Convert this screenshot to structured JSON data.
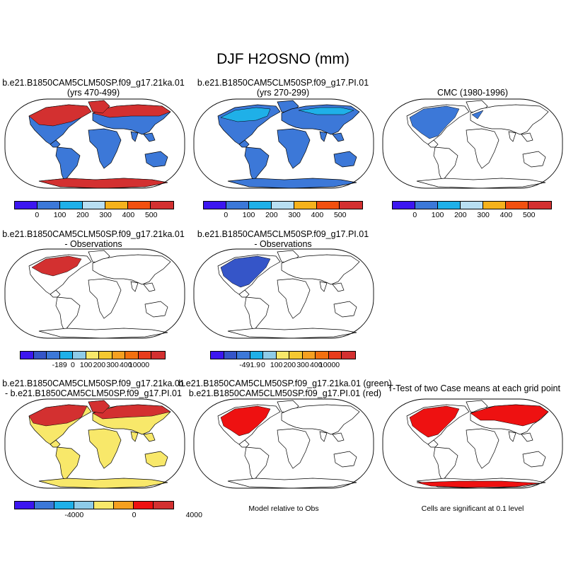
{
  "title": "DJF H2OSNO (mm)",
  "panels": {
    "p1": {
      "line1": "b.e21.B1850CAM5CLM50SP.f09_g17.21ka.01",
      "line2": "(yrs 470-499)",
      "fill": "#3c78d8",
      "snow": "#d33030"
    },
    "p2": {
      "line1": "b.e21.B1850CAM5CLM50SP.f09_g17.PI.01",
      "line2": "(yrs 270-299)",
      "fill": "#3c78d8",
      "snow": "#1fb0e8"
    },
    "p3": {
      "line1": "CMC (1980-1996)",
      "fill": "#ffffff",
      "snow": "#3c78d8"
    },
    "p4": {
      "line1": "b.e21.B1850CAM5CLM50SP.f09_g17.21ka.01",
      "line2": "- Observations",
      "fill": "#ffffff",
      "snow": "#d33030"
    },
    "p5": {
      "line1": "b.e21.B1850CAM5CLM50SP.f09_g17.PI.01",
      "line2": "- Observations",
      "fill": "#ffffff",
      "snow": "#3555c8"
    },
    "p7": {
      "line1": "b.e21.B1850CAM5CLM50SP.f09_g17.21ka.01",
      "line2": "- b.e21.B1850CAM5CLM50SP.f09_g17.PI.01",
      "fill": "#f8e86a",
      "snow": "#d33030"
    },
    "p8": {
      "line1": "b.e21.B1850CAM5CLM50SP.f09_g17.21ka.01 (green)",
      "line2": "b.e21.B1850CAM5CLM50SP.f09_g17.PI.01 (red)",
      "fill": "#ffffff",
      "snow": "#ee1111"
    },
    "p9": {
      "line1": "T-Test of two Case means at each grid point",
      "fill": "#ffffff",
      "snow": "#ee1111"
    }
  },
  "colorbars": {
    "abs": {
      "colors": [
        "#3c16f0",
        "#3c78d8",
        "#1fb0e8",
        "#b8dff2",
        "#f5b21c",
        "#f2500f",
        "#d33030"
      ],
      "ticks": [
        "0",
        "100",
        "200",
        "300",
        "400",
        "500"
      ]
    },
    "diff1": {
      "colors": [
        "#3c16f0",
        "#3555c8",
        "#3c78d8",
        "#1fb0e8",
        "#8ecbe8",
        "#f8e86a",
        "#f5c830",
        "#f5a020",
        "#f2700f",
        "#e83c1c",
        "#d33030"
      ],
      "ticks": [
        "-189",
        "0",
        "100",
        "200",
        "300",
        "400",
        "10000"
      ]
    },
    "diff2": {
      "colors": [
        "#3c16f0",
        "#3555c8",
        "#3c78d8",
        "#1fb0e8",
        "#8ecbe8",
        "#f8e86a",
        "#f5c830",
        "#f5a020",
        "#f2700f",
        "#e83c1c",
        "#d33030"
      ],
      "ticks": [
        "-491.9",
        "0",
        "100",
        "200",
        "300",
        "400",
        "10000"
      ]
    },
    "pdiff": {
      "colors": [
        "#3c16f0",
        "#3c78d8",
        "#1fb0e8",
        "#8ecbe8",
        "#f8e86a",
        "#f5a020",
        "#ee1111",
        "#d33030"
      ],
      "ticks": [
        "-4000",
        "0",
        "4000"
      ]
    }
  },
  "notes": {
    "model_obs": "Model relative to Obs",
    "significance": "Cells are significant at 0.1 level"
  }
}
